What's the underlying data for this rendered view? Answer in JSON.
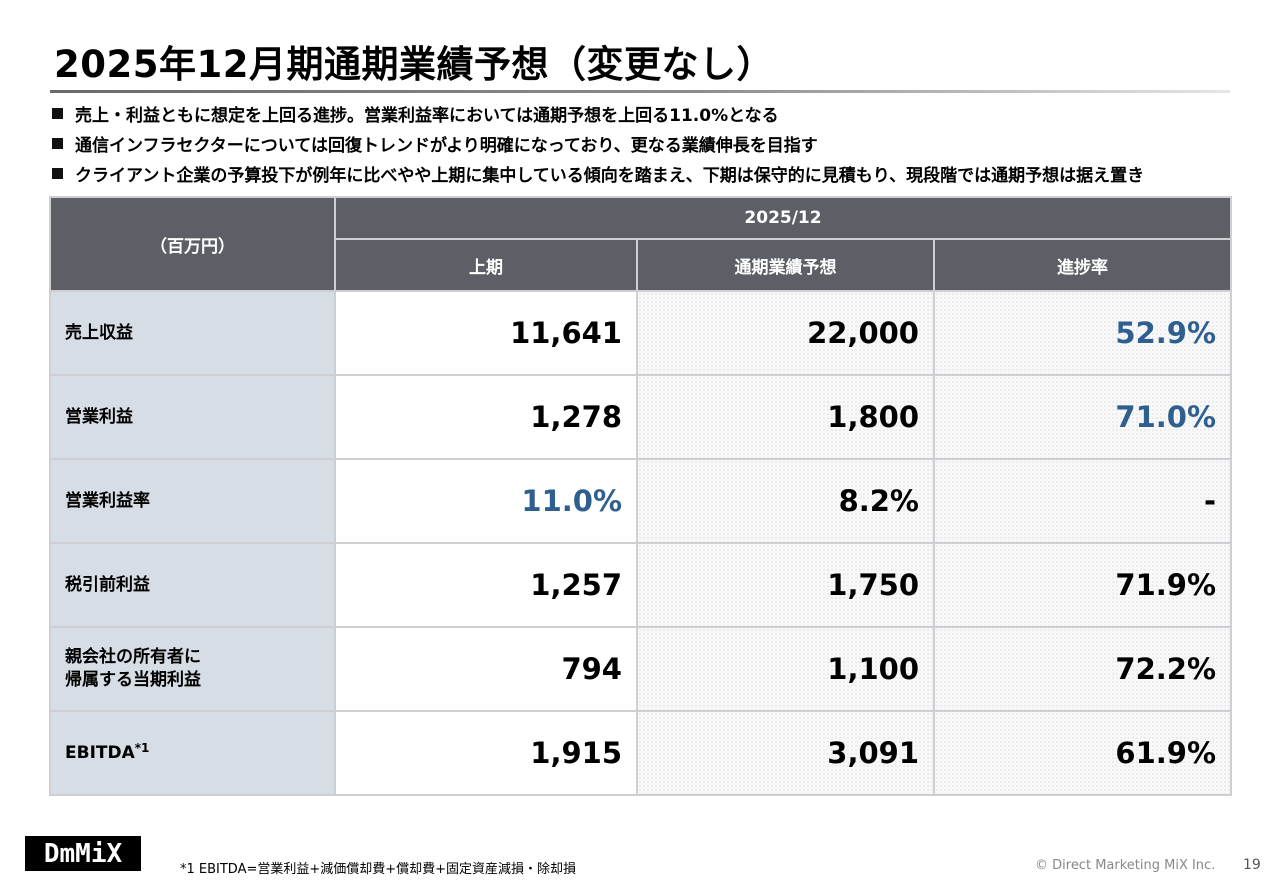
{
  "title": "2025年12月期通期業績予想（変更なし）",
  "bullets": [
    "売上・利益ともに想定を上回る進捗。営業利益率においては通期予想を上回る11.0%となる",
    "通信インフラセクターについては回復トレンドがより明確になっており、更なる業績伸長を目指す",
    "クライアント企業の予算投下が例年に比べやや上期に集中している傾向を踏まえ、下期は保守的に見積もり、現段階では通期予想は据え置き"
  ],
  "table": {
    "unit_label": "（百万円）",
    "period": "2025/12",
    "columns": [
      "上期",
      "通期業績予想",
      "進捗率"
    ],
    "rows": [
      {
        "label": "売上収益",
        "h1": "11,641",
        "forecast": "22,000",
        "progress": "52.9%"
      },
      {
        "label": "営業利益",
        "h1": "1,278",
        "forecast": "1,800",
        "progress": "71.0%"
      },
      {
        "label": "営業利益率",
        "h1": "11.0%",
        "forecast": "8.2%",
        "progress": "-"
      },
      {
        "label": "税引前利益",
        "h1": "1,257",
        "forecast": "1,750",
        "progress": "71.9%"
      },
      {
        "label_line1": "親会社の所有者に",
        "label_line2": "帰属する当期利益",
        "h1": "794",
        "forecast": "1,100",
        "progress": "72.2%"
      },
      {
        "label": "EBITDA",
        "label_note": "*1",
        "h1": "1,915",
        "forecast": "3,091",
        "progress": "61.9%"
      }
    ],
    "highlight_color": "#2e5f8f"
  },
  "footer": {
    "logo_text": "DmMiX",
    "footnote": "*1  EBITDA=営業利益+減価償却費+償却費+固定資産減損・除却損",
    "copyright": "© Direct Marketing MiX Inc.",
    "page_number": "19"
  }
}
